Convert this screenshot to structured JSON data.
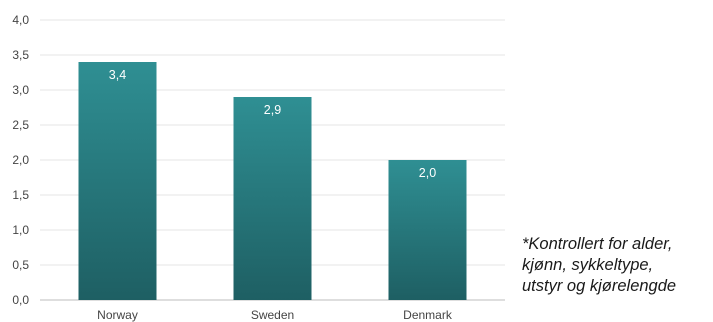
{
  "chart_data": {
    "type": "bar",
    "categories": [
      "Norway",
      "Sweden",
      "Denmark"
    ],
    "values": [
      3.4,
      2.9,
      2.0
    ],
    "value_labels": [
      "3,4",
      "2,9",
      "2,0"
    ],
    "title": "",
    "xlabel": "",
    "ylabel": "",
    "ylim": [
      0,
      4
    ],
    "yticks": [
      "0,0",
      "0,5",
      "1,0",
      "1,5",
      "2,0",
      "2,5",
      "3,0",
      "3,5",
      "4,0"
    ],
    "grid": true,
    "bar_color_top": "#2f8f93",
    "bar_color_bottom": "#1e5f63"
  },
  "note": {
    "lines": [
      "*Kontrollert for alder,",
      "kjønn, sykkeltype,",
      "utstyr og kjørelengde"
    ]
  }
}
